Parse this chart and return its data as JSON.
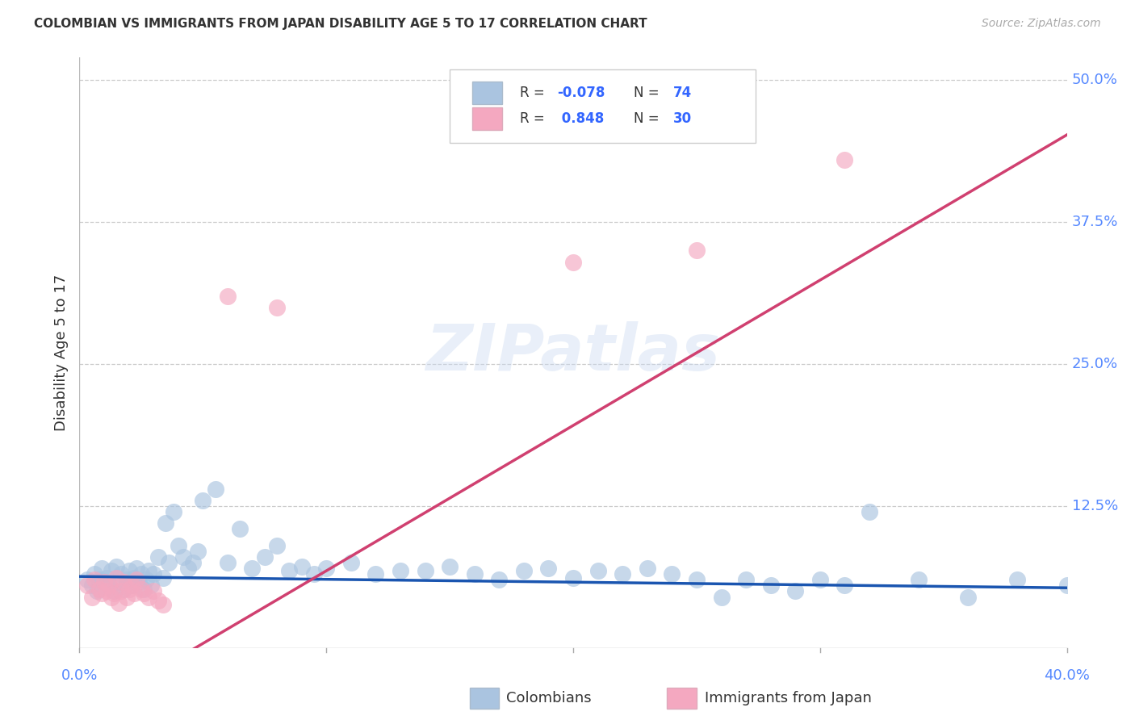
{
  "title": "COLOMBIAN VS IMMIGRANTS FROM JAPAN DISABILITY AGE 5 TO 17 CORRELATION CHART",
  "source": "Source: ZipAtlas.com",
  "ylabel": "Disability Age 5 to 17",
  "yticks": [
    0.0,
    0.125,
    0.25,
    0.375,
    0.5
  ],
  "ytick_labels": [
    "",
    "12.5%",
    "25.0%",
    "37.5%",
    "50.0%"
  ],
  "xlim": [
    0.0,
    0.4
  ],
  "ylim": [
    0.0,
    0.52
  ],
  "colombian_color": "#aac4e0",
  "japan_color": "#f4a8c0",
  "trendline_blue": "#1a55b0",
  "trendline_pink": "#d04070",
  "watermark_text": "ZIPatlas",
  "blue_slope": -0.025,
  "blue_intercept": 0.063,
  "pink_slope": 1.28,
  "pink_intercept": -0.06,
  "blue_scatter_x": [
    0.003,
    0.005,
    0.006,
    0.007,
    0.008,
    0.009,
    0.01,
    0.011,
    0.012,
    0.013,
    0.014,
    0.015,
    0.016,
    0.017,
    0.018,
    0.019,
    0.02,
    0.021,
    0.022,
    0.023,
    0.024,
    0.025,
    0.026,
    0.027,
    0.028,
    0.029,
    0.03,
    0.032,
    0.034,
    0.035,
    0.036,
    0.038,
    0.04,
    0.042,
    0.044,
    0.046,
    0.048,
    0.05,
    0.055,
    0.06,
    0.065,
    0.07,
    0.075,
    0.08,
    0.085,
    0.09,
    0.095,
    0.1,
    0.11,
    0.12,
    0.13,
    0.14,
    0.15,
    0.16,
    0.17,
    0.18,
    0.19,
    0.2,
    0.21,
    0.22,
    0.23,
    0.24,
    0.25,
    0.26,
    0.27,
    0.28,
    0.29,
    0.3,
    0.31,
    0.32,
    0.34,
    0.36,
    0.38,
    0.4
  ],
  "blue_scatter_y": [
    0.06,
    0.055,
    0.065,
    0.05,
    0.06,
    0.07,
    0.058,
    0.062,
    0.055,
    0.068,
    0.05,
    0.072,
    0.058,
    0.065,
    0.052,
    0.06,
    0.068,
    0.055,
    0.062,
    0.07,
    0.058,
    0.065,
    0.052,
    0.06,
    0.068,
    0.055,
    0.065,
    0.08,
    0.062,
    0.11,
    0.075,
    0.12,
    0.09,
    0.08,
    0.07,
    0.075,
    0.085,
    0.13,
    0.14,
    0.075,
    0.105,
    0.07,
    0.08,
    0.09,
    0.068,
    0.072,
    0.065,
    0.07,
    0.075,
    0.065,
    0.068,
    0.068,
    0.072,
    0.065,
    0.06,
    0.068,
    0.07,
    0.062,
    0.068,
    0.065,
    0.07,
    0.065,
    0.06,
    0.045,
    0.06,
    0.055,
    0.05,
    0.06,
    0.055,
    0.12,
    0.06,
    0.045,
    0.06,
    0.055
  ],
  "japan_scatter_x": [
    0.003,
    0.005,
    0.006,
    0.008,
    0.009,
    0.01,
    0.011,
    0.012,
    0.013,
    0.014,
    0.015,
    0.016,
    0.017,
    0.018,
    0.019,
    0.02,
    0.021,
    0.022,
    0.023,
    0.025,
    0.026,
    0.028,
    0.03,
    0.032,
    0.034,
    0.06,
    0.2,
    0.25,
    0.31,
    0.08
  ],
  "japan_scatter_y": [
    0.055,
    0.045,
    0.06,
    0.052,
    0.048,
    0.058,
    0.05,
    0.055,
    0.045,
    0.048,
    0.062,
    0.04,
    0.05,
    0.058,
    0.045,
    0.052,
    0.055,
    0.048,
    0.06,
    0.052,
    0.048,
    0.045,
    0.05,
    0.042,
    0.038,
    0.31,
    0.34,
    0.35,
    0.43,
    0.3
  ]
}
